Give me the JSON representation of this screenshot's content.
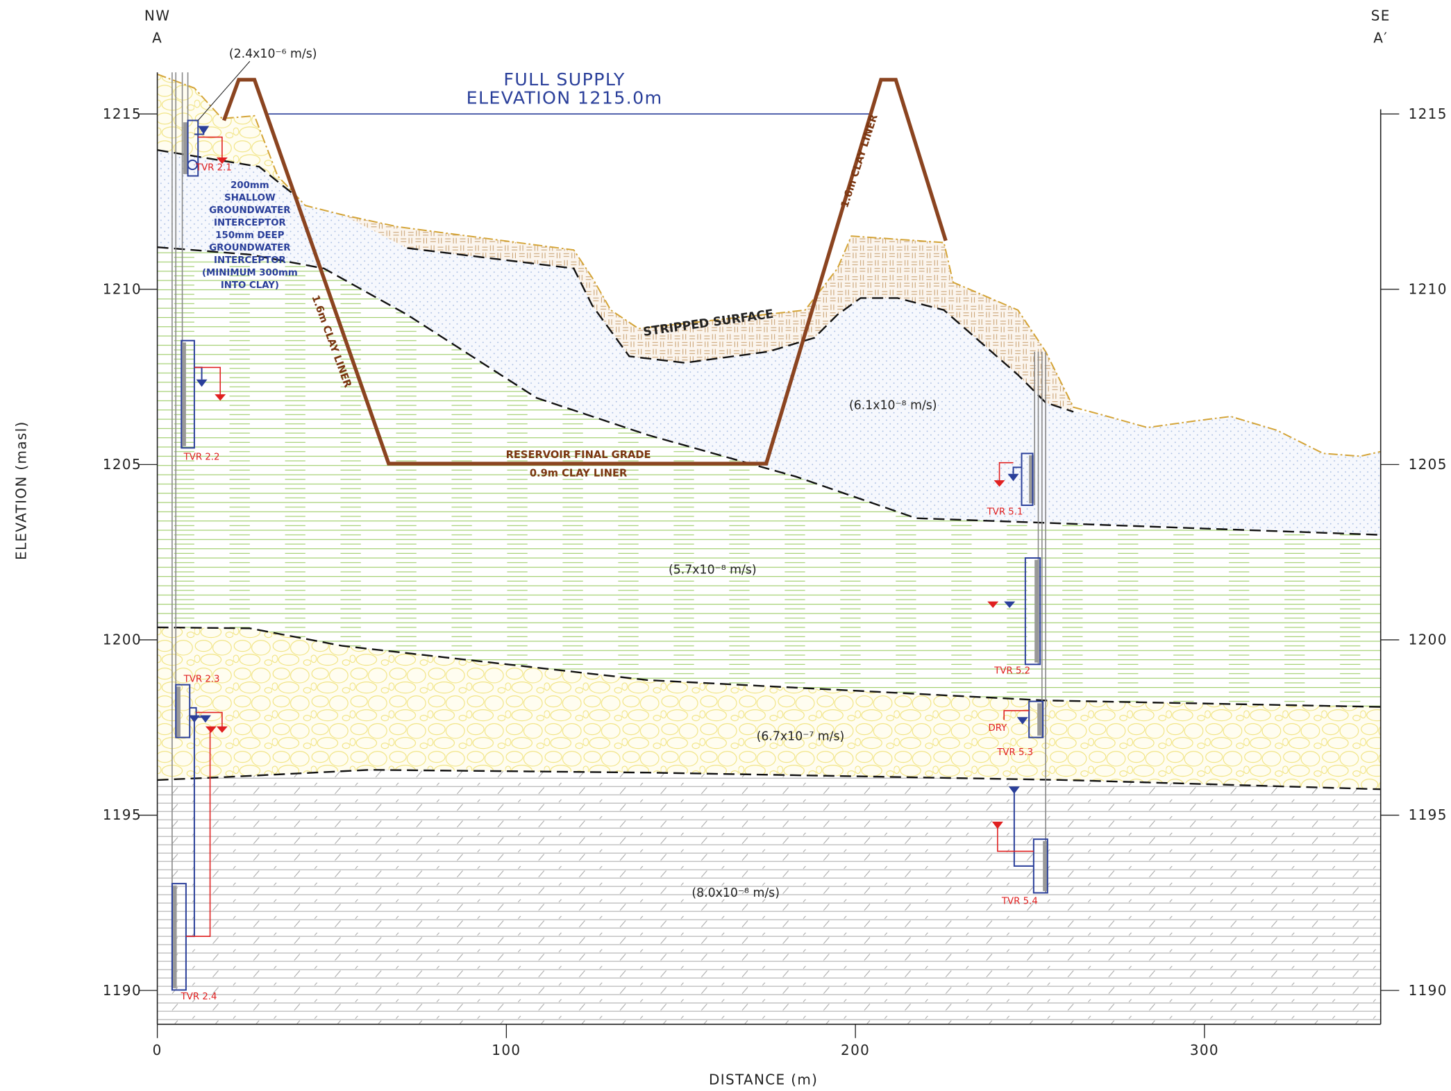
{
  "header": {
    "left": {
      "direction": "NW",
      "section": "A"
    },
    "right": {
      "direction": "SE",
      "section": "A′"
    }
  },
  "axes": {
    "y": {
      "label": "ELEVATION (masl)",
      "ticks": [
        1190,
        1195,
        1200,
        1205,
        1210,
        1215
      ]
    },
    "x": {
      "label": "DISTANCE (m)",
      "ticks": [
        0,
        100,
        200,
        300
      ]
    }
  },
  "annotations": {
    "full_supply": [
      "FULL SUPPLY",
      "ELEVATION 1215.0m"
    ],
    "left_liner": "1.6m CLAY LINER",
    "right_liner": "1.6m CLAY LINER",
    "stripped_surface": "STRIPPED SURFACE",
    "final_grade": "RESERVOIR FINAL GRADE",
    "base_liner": "0.9m CLAY LINER",
    "interceptor_note": [
      "200mm",
      "SHALLOW",
      "GROUNDWATER",
      "INTERCEPTOR",
      "150mm DEEP",
      "GROUNDWATER",
      "INTERCEPTOR",
      "(MINIMUM 300mm",
      "INTO CLAY)"
    ],
    "conductivity": [
      "(2.4x10⁻⁶ m/s)",
      "(6.1x10⁻⁸ m/s)",
      "(5.7x10⁻⁸ m/s)",
      "(6.7x10⁻⁷ m/s)",
      "(8.0x10⁻⁸  m/s)"
    ],
    "dry": "DRY"
  },
  "wells": [
    "TVR 2.1",
    "TVR 2.2",
    "TVR 2.3",
    "TVR 2.4",
    "TVR 5.1",
    "TVR 5.2",
    "TVR 5.3",
    "TVR 5.4"
  ]
}
